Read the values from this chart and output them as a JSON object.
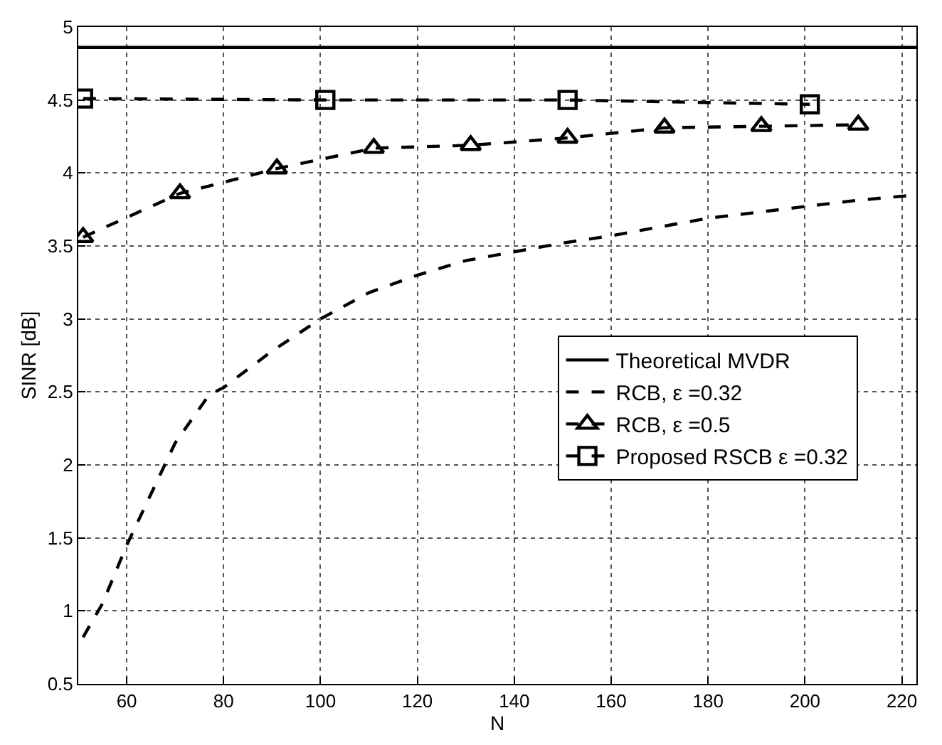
{
  "chart_data": {
    "type": "line",
    "xlabel": "N",
    "ylabel": "SINR [dB]",
    "xlim": [
      50,
      223
    ],
    "xticks": [
      60,
      80,
      100,
      120,
      140,
      160,
      180,
      200,
      220
    ],
    "ylim": [
      0.5,
      5
    ],
    "yticks": [
      0.5,
      1,
      1.5,
      2,
      2.5,
      3,
      3.5,
      4,
      4.5,
      5
    ],
    "grid": true,
    "legend": "right",
    "series": [
      {
        "name": "Theoretical MVDR",
        "color": "#000000",
        "line_style": "solid",
        "marker": "none",
        "x": [
          50,
          223
        ],
        "values": [
          4.86,
          4.86
        ]
      },
      {
        "name": "RCB, ε =0.32",
        "color": "#000000",
        "line_style": "dashed",
        "marker": "none",
        "x": [
          51,
          55,
          60,
          65,
          70,
          77,
          80,
          90,
          100,
          110,
          120,
          130,
          140,
          150,
          160,
          170,
          180,
          190,
          200,
          210,
          223
        ],
        "values": [
          0.82,
          1.05,
          1.45,
          1.8,
          2.15,
          2.48,
          2.53,
          2.78,
          3.0,
          3.18,
          3.3,
          3.4,
          3.46,
          3.52,
          3.57,
          3.63,
          3.69,
          3.73,
          3.77,
          3.81,
          3.85
        ]
      },
      {
        "name": "RCB, ε =0.5",
        "color": "#000000",
        "line_style": "dashed",
        "marker": "triangle",
        "x": [
          51,
          71,
          91,
          111,
          131,
          151,
          171,
          191,
          211
        ],
        "values": [
          3.56,
          3.86,
          4.03,
          4.17,
          4.19,
          4.24,
          4.31,
          4.32,
          4.33
        ]
      },
      {
        "name": "Proposed RSCB ε =0.32",
        "color": "#000000",
        "line_style": "dashed",
        "marker": "square",
        "x": [
          51,
          101,
          151,
          201
        ],
        "values": [
          4.51,
          4.5,
          4.5,
          4.47
        ]
      }
    ]
  }
}
